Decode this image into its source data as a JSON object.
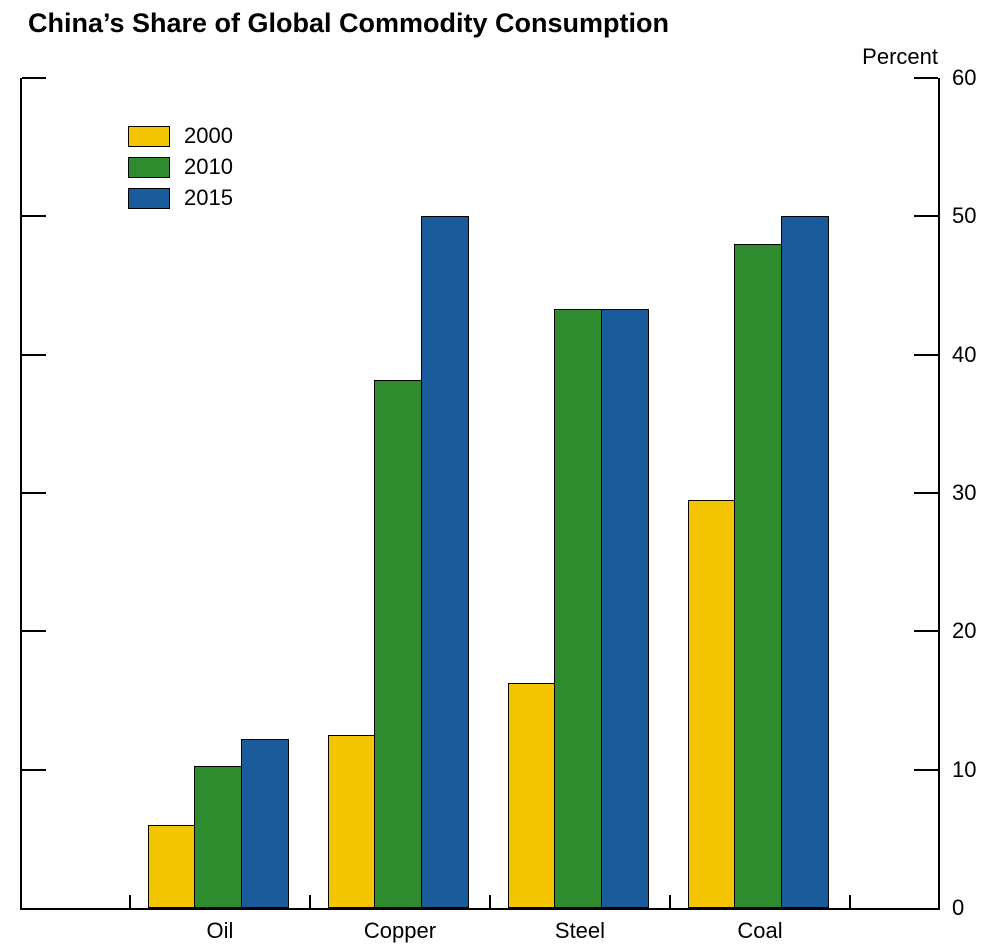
{
  "chart_data": {
    "type": "bar",
    "title": "China’s Share of Global Commodity Consumption",
    "ylabel": "Percent",
    "xlabel": "",
    "categories": [
      "Oil",
      "Copper",
      "Steel",
      "Coal"
    ],
    "series": [
      {
        "name": "2000",
        "color": "#F5C400",
        "values": [
          6.0,
          12.5,
          16.3,
          29.5
        ]
      },
      {
        "name": "2010",
        "color": "#2E8B2E",
        "values": [
          10.3,
          38.2,
          43.3,
          48.0
        ]
      },
      {
        "name": "2015",
        "color": "#1A5B9C",
        "values": [
          12.2,
          50.0,
          43.3,
          50.0
        ]
      }
    ],
    "ylim": [
      0,
      60
    ],
    "yticks": [
      0,
      10,
      20,
      30,
      40,
      50,
      60
    ],
    "grid": false,
    "legend_position": "top-left",
    "legend_entries": [
      "2000",
      "2010",
      "2015"
    ],
    "bar_outline_color": "#000000",
    "axis_color": "#000000",
    "background_color": "#FFFFFF"
  }
}
